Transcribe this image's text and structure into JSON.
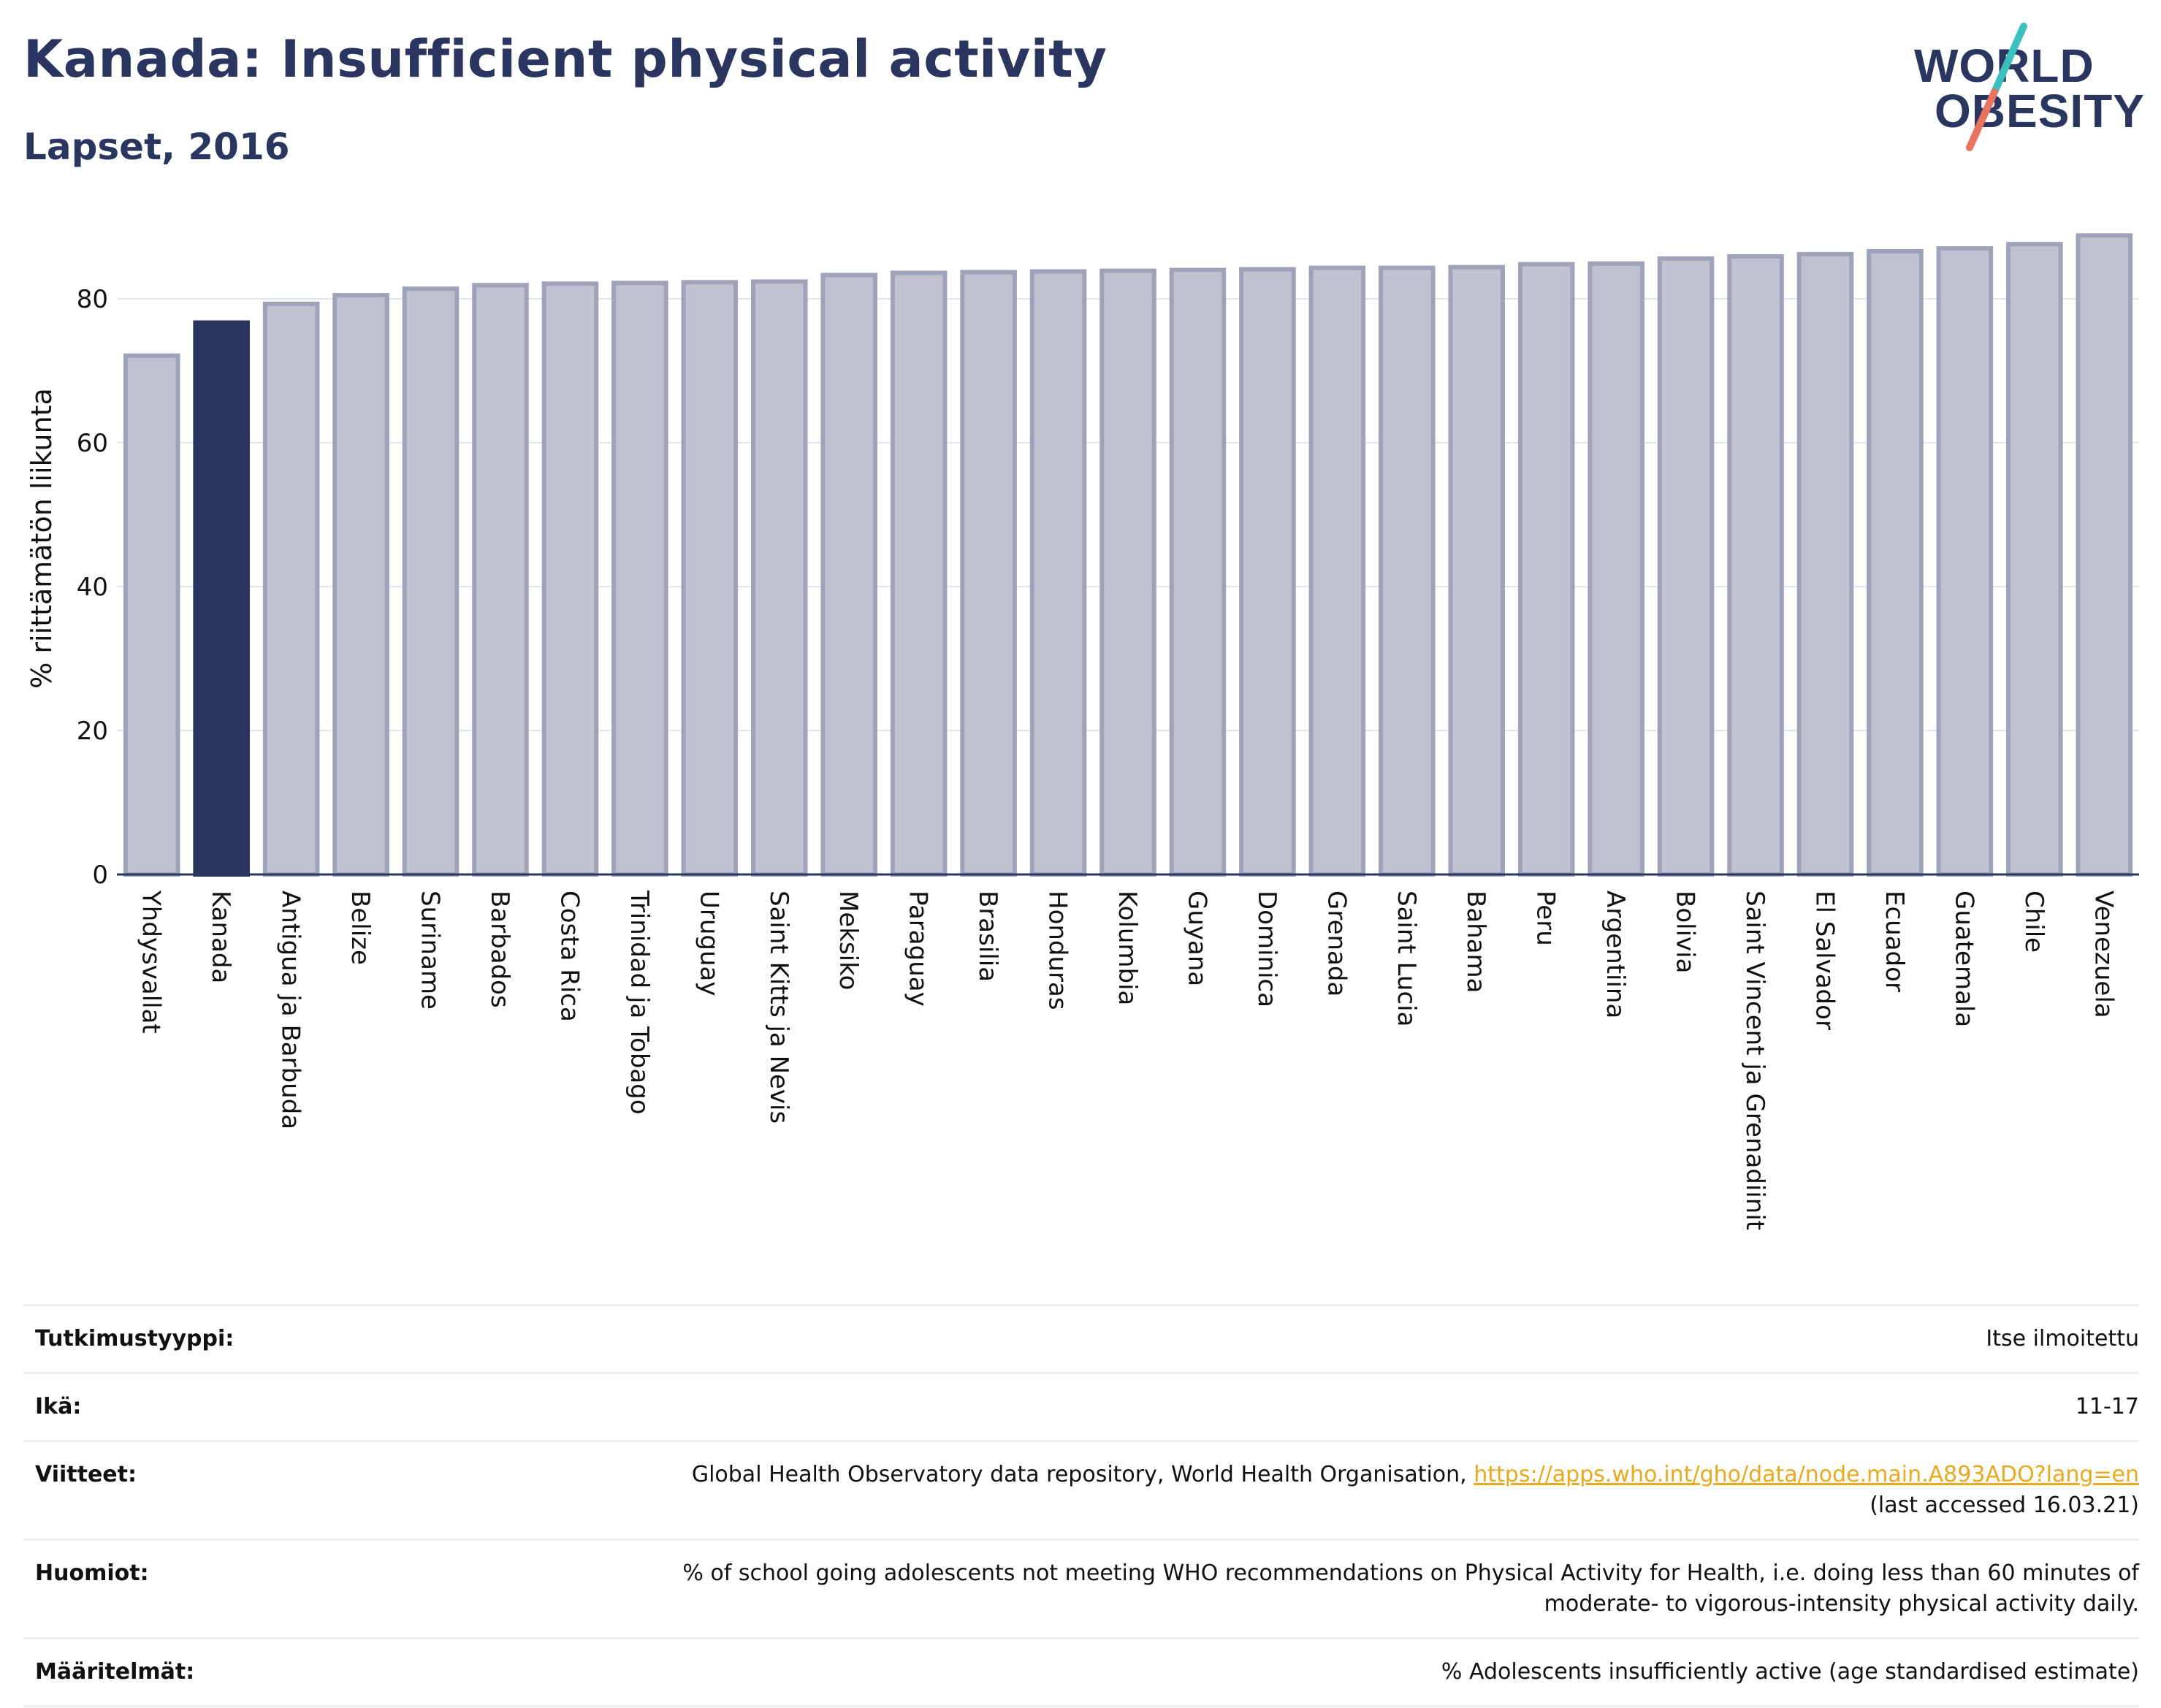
{
  "header": {
    "title": "Kanada: Insufficient physical activity",
    "subtitle": "Lapset, 2016"
  },
  "logo": {
    "line1": "WORLD",
    "line2": "OBESITY"
  },
  "colors": {
    "bar": "#bfc2d0",
    "bar_stroke": "#9ea3b9",
    "highlight": "#2a3560",
    "text": "#2a3560"
  },
  "chart_data": {
    "type": "bar",
    "title": "Kanada: Insufficient physical activity",
    "subtitle": "Lapset, 2016",
    "ylabel": "% riittämätön liikunta",
    "xlabel": "",
    "ylim": [
      0,
      90
    ],
    "yticks": [
      0,
      20,
      40,
      60,
      80
    ],
    "grid": true,
    "highlight": "Kanada",
    "categories": [
      "Yhdysvallat",
      "Kanada",
      "Antigua ja Barbuda",
      "Belize",
      "Suriname",
      "Barbados",
      "Costa Rica",
      "Trinidad ja Tobago",
      "Uruguay",
      "Saint Kitts ja Nevis",
      "Meksiko",
      "Paraguay",
      "Brasilia",
      "Honduras",
      "Kolumbia",
      "Guyana",
      "Dominica",
      "Grenada",
      "Saint Lucia",
      "Bahama",
      "Peru",
      "Argentiina",
      "Bolivia",
      "Saint Vincent ja Grenadiinit",
      "El Salvador",
      "Ecuador",
      "Guatemala",
      "Chile",
      "Venezuela"
    ],
    "values": [
      72.1,
      76.7,
      79.3,
      80.5,
      81.4,
      81.9,
      82.1,
      82.2,
      82.3,
      82.4,
      83.3,
      83.6,
      83.7,
      83.8,
      83.9,
      84.0,
      84.1,
      84.3,
      84.3,
      84.4,
      84.8,
      84.9,
      85.6,
      85.9,
      86.2,
      86.6,
      87.0,
      87.6,
      88.8
    ]
  },
  "meta": {
    "rows": [
      {
        "label": "Tutkimustyyppi:",
        "value": "Itse ilmoitettu"
      },
      {
        "label": "Ikä:",
        "value": "11-17"
      },
      {
        "label": "Viitteet:",
        "value": "Global Health Observatory data repository, World Health Organisation,",
        "link": "https://apps.who.int/gho/data/node.main.A893ADO?lang=en",
        "value2": "(last accessed 16.03.21)"
      },
      {
        "label": "Huomiot:",
        "value": "% of school going adolescents not meeting WHO recommendations on Physical Activity for Health, i.e. doing less than 60 minutes of",
        "value2": "moderate- to vigorous-intensity physical activity daily."
      },
      {
        "label": "Määritelmät:",
        "value": "% Adolescents insufficiently active (age standardised estimate)"
      }
    ]
  }
}
